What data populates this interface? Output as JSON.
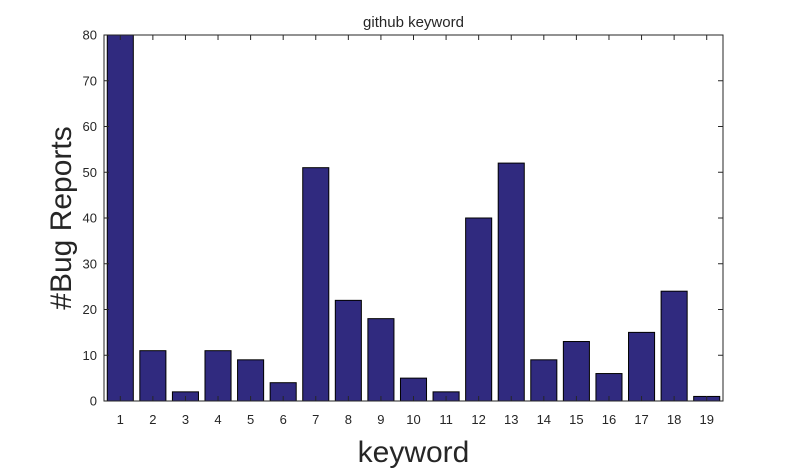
{
  "chart_data": {
    "type": "bar",
    "title": "github keyword",
    "xlabel": "keyword",
    "ylabel": "#Bug Reports",
    "categories": [
      "1",
      "2",
      "3",
      "4",
      "5",
      "6",
      "7",
      "8",
      "9",
      "10",
      "11",
      "12",
      "13",
      "14",
      "15",
      "16",
      "17",
      "18",
      "19"
    ],
    "values": [
      80,
      11,
      2,
      11,
      9,
      4,
      51,
      22,
      18,
      5,
      2,
      40,
      52,
      9,
      13,
      6,
      15,
      24,
      1
    ],
    "ylim": [
      0,
      80
    ],
    "yticks": [
      0,
      10,
      20,
      30,
      40,
      50,
      60,
      70,
      80
    ],
    "grid": false,
    "bar_color": "#302a7f",
    "edge_color": "#000000"
  }
}
